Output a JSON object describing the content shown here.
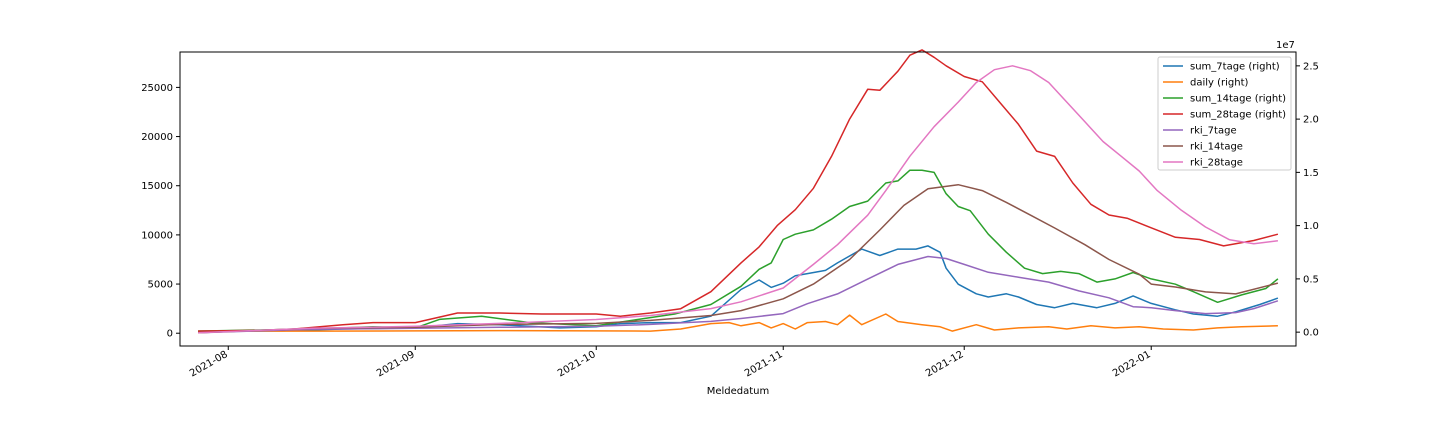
{
  "chart_data": {
    "type": "line",
    "xlabel": "Meldedatum",
    "x_range": [
      "2021-07-24",
      "2022-01-25"
    ],
    "x_ticks": [
      "2021-08-01",
      "2021-09-01",
      "2021-10-01",
      "2021-11-01",
      "2021-12-01",
      "2022-01-01"
    ],
    "x_tick_labels": [
      "2021-08",
      "2021-09",
      "2021-10",
      "2021-11",
      "2021-12",
      "2022-01"
    ],
    "left_axis": {
      "ylim": [
        -1300,
        28600
      ],
      "ticks": [
        0,
        5000,
        10000,
        15000,
        20000,
        25000
      ]
    },
    "right_axis": {
      "ylim": [
        -1300000,
        26300000
      ],
      "ticks": [
        0,
        5000000,
        10000000,
        15000000,
        20000000,
        25000000
      ],
      "tick_labels": [
        "0.0",
        "0.5",
        "1.0",
        "1.5",
        "2.0",
        "2.5"
      ],
      "offset_label": "1e7"
    },
    "legend_position": "upper right",
    "series": [
      {
        "name": "sum_7tage (right)",
        "axis": "right",
        "color": "#1f77b4",
        "points": [
          [
            "2021-07-27",
            100000
          ],
          [
            "2021-08-10",
            120000
          ],
          [
            "2021-08-20",
            300000
          ],
          [
            "2021-09-01",
            400000
          ],
          [
            "2021-09-08",
            800000
          ],
          [
            "2021-09-15",
            700000
          ],
          [
            "2021-09-25",
            400000
          ],
          [
            "2021-10-01",
            500000
          ],
          [
            "2021-10-05",
            800000
          ],
          [
            "2021-10-10",
            900000
          ],
          [
            "2021-10-15",
            900000
          ],
          [
            "2021-10-20",
            1500000
          ],
          [
            "2021-10-25",
            4000000
          ],
          [
            "2021-10-28",
            4900000
          ],
          [
            "2021-10-30",
            4200000
          ],
          [
            "2021-11-01",
            4600000
          ],
          [
            "2021-11-03",
            5300000
          ],
          [
            "2021-11-05",
            5500000
          ],
          [
            "2021-11-08",
            5800000
          ],
          [
            "2021-11-10",
            6500000
          ],
          [
            "2021-11-14",
            7800000
          ],
          [
            "2021-11-17",
            7200000
          ],
          [
            "2021-11-20",
            7800000
          ],
          [
            "2021-11-23",
            7800000
          ],
          [
            "2021-11-25",
            8100000
          ],
          [
            "2021-11-27",
            7500000
          ],
          [
            "2021-11-28",
            6000000
          ],
          [
            "2021-11-30",
            4500000
          ],
          [
            "2021-12-03",
            3600000
          ],
          [
            "2021-12-05",
            3300000
          ],
          [
            "2021-12-08",
            3600000
          ],
          [
            "2021-12-10",
            3300000
          ],
          [
            "2021-12-13",
            2600000
          ],
          [
            "2021-12-16",
            2300000
          ],
          [
            "2021-12-19",
            2700000
          ],
          [
            "2021-12-23",
            2300000
          ],
          [
            "2021-12-26",
            2700000
          ],
          [
            "2021-12-29",
            3400000
          ],
          [
            "2022-01-01",
            2700000
          ],
          [
            "2022-01-05",
            2100000
          ],
          [
            "2022-01-08",
            1700000
          ],
          [
            "2022-01-12",
            1500000
          ],
          [
            "2022-01-15",
            1900000
          ],
          [
            "2022-01-19",
            2600000
          ],
          [
            "2022-01-22",
            3200000
          ]
        ]
      },
      {
        "name": "daily (right)",
        "axis": "right",
        "color": "#ff7f0e",
        "points": [
          [
            "2021-07-27",
            100000
          ],
          [
            "2021-08-15",
            100000
          ],
          [
            "2021-09-01",
            120000
          ],
          [
            "2021-09-15",
            150000
          ],
          [
            "2021-10-01",
            120000
          ],
          [
            "2021-10-10",
            100000
          ],
          [
            "2021-10-15",
            300000
          ],
          [
            "2021-10-20",
            800000
          ],
          [
            "2021-10-23",
            900000
          ],
          [
            "2021-10-25",
            600000
          ],
          [
            "2021-10-28",
            900000
          ],
          [
            "2021-10-30",
            400000
          ],
          [
            "2021-11-01",
            800000
          ],
          [
            "2021-11-03",
            300000
          ],
          [
            "2021-11-05",
            900000
          ],
          [
            "2021-11-08",
            1000000
          ],
          [
            "2021-11-10",
            700000
          ],
          [
            "2021-11-12",
            1600000
          ],
          [
            "2021-11-14",
            700000
          ],
          [
            "2021-11-18",
            1700000
          ],
          [
            "2021-11-20",
            1000000
          ],
          [
            "2021-11-24",
            700000
          ],
          [
            "2021-11-27",
            500000
          ],
          [
            "2021-11-29",
            100000
          ],
          [
            "2021-12-03",
            700000
          ],
          [
            "2021-12-06",
            200000
          ],
          [
            "2021-12-10",
            400000
          ],
          [
            "2021-12-15",
            500000
          ],
          [
            "2021-12-18",
            300000
          ],
          [
            "2021-12-22",
            600000
          ],
          [
            "2021-12-26",
            400000
          ],
          [
            "2021-12-30",
            500000
          ],
          [
            "2022-01-03",
            300000
          ],
          [
            "2022-01-08",
            200000
          ],
          [
            "2022-01-12",
            400000
          ],
          [
            "2022-01-16",
            500000
          ],
          [
            "2022-01-22",
            600000
          ]
        ]
      },
      {
        "name": "sum_14tage (right)",
        "axis": "right",
        "color": "#2ca02c",
        "points": [
          [
            "2021-07-27",
            100000
          ],
          [
            "2021-08-15",
            300000
          ],
          [
            "2021-08-25",
            500000
          ],
          [
            "2021-09-01",
            400000
          ],
          [
            "2021-09-05",
            1200000
          ],
          [
            "2021-09-12",
            1500000
          ],
          [
            "2021-09-20",
            900000
          ],
          [
            "2021-10-01",
            600000
          ],
          [
            "2021-10-08",
            1200000
          ],
          [
            "2021-10-14",
            1700000
          ],
          [
            "2021-10-20",
            2600000
          ],
          [
            "2021-10-25",
            4300000
          ],
          [
            "2021-10-28",
            5900000
          ],
          [
            "2021-10-30",
            6500000
          ],
          [
            "2021-11-01",
            8700000
          ],
          [
            "2021-11-03",
            9200000
          ],
          [
            "2021-11-06",
            9600000
          ],
          [
            "2021-11-09",
            10600000
          ],
          [
            "2021-11-12",
            11800000
          ],
          [
            "2021-11-15",
            12300000
          ],
          [
            "2021-11-18",
            14000000
          ],
          [
            "2021-11-20",
            14200000
          ],
          [
            "2021-11-22",
            15200000
          ],
          [
            "2021-11-24",
            15200000
          ],
          [
            "2021-11-26",
            15000000
          ],
          [
            "2021-11-28",
            13000000
          ],
          [
            "2021-11-30",
            11800000
          ],
          [
            "2021-12-02",
            11400000
          ],
          [
            "2021-12-05",
            9200000
          ],
          [
            "2021-12-08",
            7500000
          ],
          [
            "2021-12-11",
            6000000
          ],
          [
            "2021-12-14",
            5500000
          ],
          [
            "2021-12-17",
            5700000
          ],
          [
            "2021-12-20",
            5500000
          ],
          [
            "2021-12-23",
            4700000
          ],
          [
            "2021-12-26",
            5000000
          ],
          [
            "2021-12-29",
            5600000
          ],
          [
            "2022-01-01",
            5000000
          ],
          [
            "2022-01-05",
            4500000
          ],
          [
            "2022-01-08",
            3800000
          ],
          [
            "2022-01-12",
            2800000
          ],
          [
            "2022-01-16",
            3500000
          ],
          [
            "2022-01-20",
            4100000
          ],
          [
            "2022-01-22",
            5000000
          ]
        ]
      },
      {
        "name": "sum_28tage (right)",
        "axis": "right",
        "color": "#d62728",
        "points": [
          [
            "2021-07-27",
            100000
          ],
          [
            "2021-08-10",
            200000
          ],
          [
            "2021-08-20",
            700000
          ],
          [
            "2021-08-25",
            900000
          ],
          [
            "2021-09-01",
            900000
          ],
          [
            "2021-09-08",
            1800000
          ],
          [
            "2021-09-15",
            1800000
          ],
          [
            "2021-09-22",
            1700000
          ],
          [
            "2021-10-01",
            1700000
          ],
          [
            "2021-10-05",
            1500000
          ],
          [
            "2021-10-10",
            1800000
          ],
          [
            "2021-10-15",
            2200000
          ],
          [
            "2021-10-20",
            3800000
          ],
          [
            "2021-10-25",
            6500000
          ],
          [
            "2021-10-28",
            8000000
          ],
          [
            "2021-10-31",
            10000000
          ],
          [
            "2021-11-03",
            11500000
          ],
          [
            "2021-11-06",
            13500000
          ],
          [
            "2021-11-09",
            16500000
          ],
          [
            "2021-11-12",
            20000000
          ],
          [
            "2021-11-15",
            22800000
          ],
          [
            "2021-11-17",
            22700000
          ],
          [
            "2021-11-20",
            24500000
          ],
          [
            "2021-11-22",
            26000000
          ],
          [
            "2021-11-24",
            26500000
          ],
          [
            "2021-11-26",
            25800000
          ],
          [
            "2021-11-28",
            25000000
          ],
          [
            "2021-12-01",
            24000000
          ],
          [
            "2021-12-04",
            23500000
          ],
          [
            "2021-12-07",
            21500000
          ],
          [
            "2021-12-10",
            19500000
          ],
          [
            "2021-12-13",
            17000000
          ],
          [
            "2021-12-16",
            16500000
          ],
          [
            "2021-12-19",
            14000000
          ],
          [
            "2021-12-22",
            12000000
          ],
          [
            "2021-12-25",
            11000000
          ],
          [
            "2021-12-28",
            10700000
          ],
          [
            "2022-01-01",
            9800000
          ],
          [
            "2022-01-05",
            8900000
          ],
          [
            "2022-01-09",
            8700000
          ],
          [
            "2022-01-13",
            8100000
          ],
          [
            "2022-01-18",
            8600000
          ],
          [
            "2022-01-22",
            9200000
          ]
        ]
      },
      {
        "name": "rki_7tage",
        "axis": "left",
        "color": "#9467bd",
        "points": [
          [
            "2021-07-27",
            50
          ],
          [
            "2021-08-15",
            400
          ],
          [
            "2021-09-01",
            500
          ],
          [
            "2021-09-15",
            600
          ],
          [
            "2021-10-01",
            700
          ],
          [
            "2021-10-10",
            900
          ],
          [
            "2021-10-20",
            1200
          ],
          [
            "2021-10-25",
            1500
          ],
          [
            "2021-11-01",
            2000
          ],
          [
            "2021-11-05",
            3000
          ],
          [
            "2021-11-10",
            4000
          ],
          [
            "2021-11-15",
            5500
          ],
          [
            "2021-11-20",
            7000
          ],
          [
            "2021-11-25",
            7800
          ],
          [
            "2021-11-28",
            7600
          ],
          [
            "2021-12-01",
            7000
          ],
          [
            "2021-12-05",
            6200
          ],
          [
            "2021-12-10",
            5700
          ],
          [
            "2021-12-15",
            5200
          ],
          [
            "2021-12-20",
            4300
          ],
          [
            "2021-12-25",
            3600
          ],
          [
            "2021-12-29",
            2700
          ],
          [
            "2022-01-01",
            2600
          ],
          [
            "2022-01-05",
            2300
          ],
          [
            "2022-01-10",
            2000
          ],
          [
            "2022-01-15",
            2100
          ],
          [
            "2022-01-18",
            2500
          ],
          [
            "2022-01-22",
            3300
          ]
        ]
      },
      {
        "name": "rki_14tage",
        "axis": "left",
        "color": "#8c564b",
        "points": [
          [
            "2021-07-27",
            50
          ],
          [
            "2021-08-15",
            500
          ],
          [
            "2021-09-01",
            600
          ],
          [
            "2021-09-15",
            900
          ],
          [
            "2021-10-01",
            1000
          ],
          [
            "2021-10-10",
            1300
          ],
          [
            "2021-10-20",
            1800
          ],
          [
            "2021-10-25",
            2300
          ],
          [
            "2021-11-01",
            3500
          ],
          [
            "2021-11-06",
            5000
          ],
          [
            "2021-11-12",
            7500
          ],
          [
            "2021-11-17",
            10500
          ],
          [
            "2021-11-21",
            13000
          ],
          [
            "2021-11-25",
            14700
          ],
          [
            "2021-11-30",
            15100
          ],
          [
            "2021-12-04",
            14500
          ],
          [
            "2021-12-08",
            13300
          ],
          [
            "2021-12-12",
            12000
          ],
          [
            "2021-12-16",
            10700
          ],
          [
            "2021-12-21",
            9000
          ],
          [
            "2021-12-25",
            7500
          ],
          [
            "2021-12-30",
            6000
          ],
          [
            "2022-01-01",
            5000
          ],
          [
            "2022-01-05",
            4700
          ],
          [
            "2022-01-10",
            4200
          ],
          [
            "2022-01-15",
            4000
          ],
          [
            "2022-01-22",
            5100
          ]
        ]
      },
      {
        "name": "rki_28tage",
        "axis": "left",
        "color": "#e377c2",
        "points": [
          [
            "2021-07-27",
            50
          ],
          [
            "2021-08-15",
            500
          ],
          [
            "2021-09-01",
            700
          ],
          [
            "2021-09-15",
            1000
          ],
          [
            "2021-10-01",
            1400
          ],
          [
            "2021-10-10",
            1800
          ],
          [
            "2021-10-20",
            2500
          ],
          [
            "2021-10-25",
            3200
          ],
          [
            "2021-11-01",
            4600
          ],
          [
            "2021-11-06",
            7000
          ],
          [
            "2021-11-10",
            9000
          ],
          [
            "2021-11-15",
            12000
          ],
          [
            "2021-11-18",
            14500
          ],
          [
            "2021-11-22",
            18000
          ],
          [
            "2021-11-26",
            21000
          ],
          [
            "2021-11-30",
            23500
          ],
          [
            "2021-12-03",
            25500
          ],
          [
            "2021-12-06",
            26800
          ],
          [
            "2021-12-09",
            27200
          ],
          [
            "2021-12-12",
            26700
          ],
          [
            "2021-12-15",
            25500
          ],
          [
            "2021-12-18",
            23500
          ],
          [
            "2021-12-21",
            21500
          ],
          [
            "2021-12-24",
            19500
          ],
          [
            "2021-12-27",
            18000
          ],
          [
            "2021-12-30",
            16500
          ],
          [
            "2022-01-02",
            14500
          ],
          [
            "2022-01-06",
            12500
          ],
          [
            "2022-01-10",
            10800
          ],
          [
            "2022-01-14",
            9500
          ],
          [
            "2022-01-18",
            9100
          ],
          [
            "2022-01-22",
            9400
          ]
        ]
      }
    ]
  }
}
